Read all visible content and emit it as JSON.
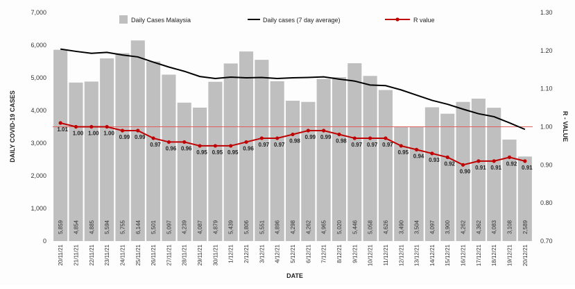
{
  "chart_data": {
    "type": "bar",
    "title": "",
    "xlabel": "DATE",
    "ylabel_left": "DAILY COVID-19 CASES",
    "ylabel_right": "R - VALUE",
    "ylim_left": [
      0,
      7000
    ],
    "ylim_right": [
      0.7,
      1.3
    ],
    "yticks_left": [
      "0",
      "1,000",
      "2,000",
      "3,000",
      "4,000",
      "5,000",
      "6,000",
      "7,000"
    ],
    "yticks_right": [
      "0.70",
      "0.80",
      "0.90",
      "1.00",
      "1.10",
      "1.20",
      "1.30"
    ],
    "legend_placement": "top",
    "categories": [
      "20/11/21",
      "21/11/21",
      "22/11/21",
      "23/11/21",
      "24/11/21",
      "25/11/21",
      "26/11/21",
      "27/11/21",
      "28/11/21",
      "29/11/21",
      "30/11/21",
      "1/12/21",
      "2/12/21",
      "3/12/21",
      "4/12/21",
      "5/12/21",
      "6/12/21",
      "7/12/21",
      "8/12/21",
      "9/12/21",
      "10/12/21",
      "11/12/21",
      "12/12/21",
      "13/12/21",
      "14/12/21",
      "15/12/21",
      "16/12/21",
      "17/12/21",
      "18/12/21",
      "19/12/21",
      "20/12/21"
    ],
    "series": [
      {
        "name": "Daily Cases Malaysia",
        "type": "bar",
        "color": "#bfbfbf",
        "values": [
          5859,
          4854,
          4885,
          5594,
          5755,
          6144,
          5501,
          5097,
          4239,
          4087,
          4879,
          5439,
          5806,
          5551,
          4896,
          4298,
          4262,
          4965,
          5020,
          5446,
          5058,
          4626,
          3490,
          3504,
          4097,
          3900,
          4262,
          4362,
          4083,
          3108,
          2589
        ],
        "labels": [
          "5,859",
          "4,854",
          "4,885",
          "5,594",
          "5,755",
          "6,144",
          "5,501",
          "5,097",
          "4,239",
          "4,087",
          "4,879",
          "5,439",
          "5,806",
          "5,551",
          "4,896",
          "4,298",
          "4,262",
          "4,965",
          "5,020",
          "5,446",
          "5,058",
          "4,626",
          "3,490",
          "3,504",
          "4,097",
          "3,900",
          "4,262",
          "4,362",
          "4,083",
          "3,108",
          "2,589"
        ]
      },
      {
        "name": "Daily cases (7 day average)",
        "type": "line",
        "color": "#000000",
        "values": [
          5880,
          5810,
          5750,
          5780,
          5700,
          5640,
          5480,
          5330,
          5200,
          5040,
          4980,
          5020,
          5000,
          5010,
          4980,
          5000,
          5010,
          5030,
          4960,
          4900,
          4780,
          4760,
          4630,
          4470,
          4310,
          4190,
          4040,
          3900,
          3810,
          3620,
          3420
        ]
      },
      {
        "name": "R value",
        "type": "line",
        "axis": "right",
        "color": "#c00000",
        "values": [
          1.01,
          1.0,
          1.0,
          1.0,
          0.99,
          0.99,
          0.97,
          0.96,
          0.96,
          0.95,
          0.95,
          0.95,
          0.96,
          0.97,
          0.97,
          0.98,
          0.99,
          0.99,
          0.98,
          0.97,
          0.97,
          0.97,
          0.95,
          0.94,
          0.93,
          0.92,
          0.9,
          0.91,
          0.91,
          0.92,
          0.91
        ],
        "labels": [
          "1.01",
          "1.00",
          "1.00",
          "1.00",
          "0.99",
          "0.99",
          "0.97",
          "0.96",
          "0.96",
          "0.95",
          "0.95",
          "0.95",
          "0.96",
          "0.97",
          "0.97",
          "0.98",
          "0.99",
          "0.99",
          "0.98",
          "0.97",
          "0.97",
          "0.97",
          "0.95",
          "0.94",
          "0.93",
          "0.92",
          "0.90",
          "0.91",
          "0.91",
          "0.92",
          "0.91"
        ]
      }
    ],
    "reference_lines": [
      {
        "axis": "right",
        "value": 1.0,
        "color": "#e06060"
      }
    ],
    "grid": false
  }
}
